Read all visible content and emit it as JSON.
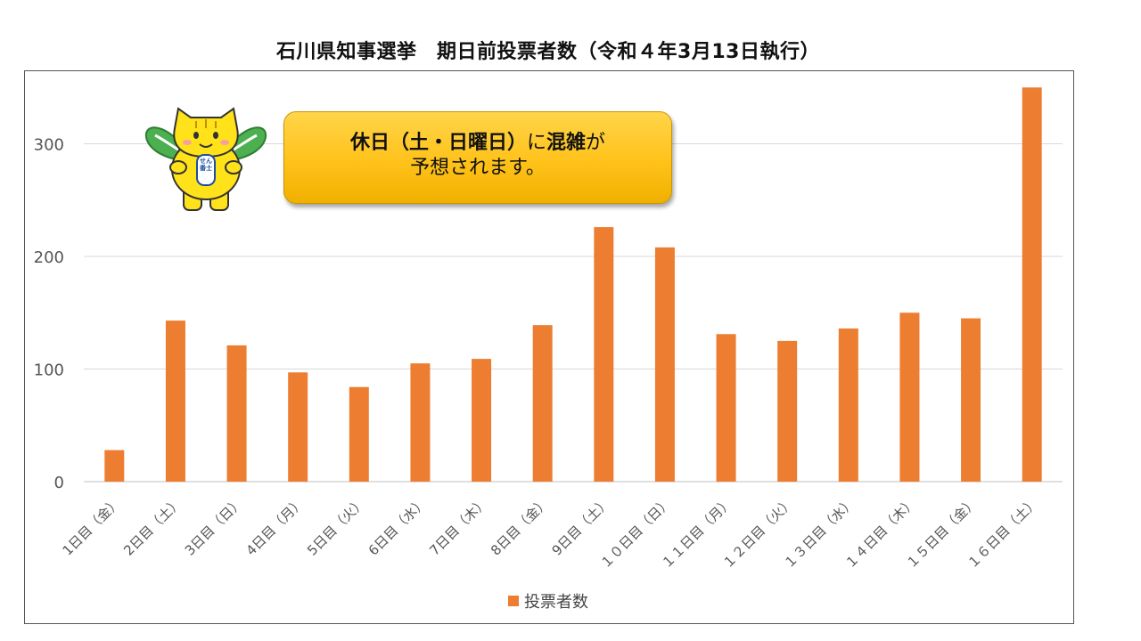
{
  "chart_data": {
    "type": "bar",
    "title": "石川県知事選挙　期日前投票者数（令和４年3月13日執行）",
    "categories": [
      "1日目（金）",
      "2日目（土）",
      "3日目（日）",
      "4日目（月）",
      "5日目（火）",
      "6日目（水）",
      "7日目（木）",
      "8日目（金）",
      "9日目（土）",
      "１０日目（日）",
      "１１日目（月）",
      "１２日目（火）",
      "１３日目（水）",
      "１４日目（木）",
      "１５日目（金）",
      "１６日目（土）"
    ],
    "series": [
      {
        "name": "投票者数",
        "values": [
          28,
          143,
          121,
          97,
          84,
          105,
          109,
          139,
          226,
          208,
          131,
          125,
          136,
          150,
          145,
          350
        ]
      }
    ],
    "ylim": [
      0,
      350
    ],
    "yticks": [
      0,
      100,
      200,
      300
    ],
    "grid": true,
    "legend_position": "bottom",
    "bar_color": "#ed7d31"
  },
  "callout": {
    "bold1": "休日（土・日曜日）",
    "plain1": "に",
    "bold2": "混雑",
    "plain2": "が",
    "line2": "予想されます。"
  },
  "mascot": {
    "badge_text": "せん番士",
    "icon": "mascot-cat-icon"
  }
}
